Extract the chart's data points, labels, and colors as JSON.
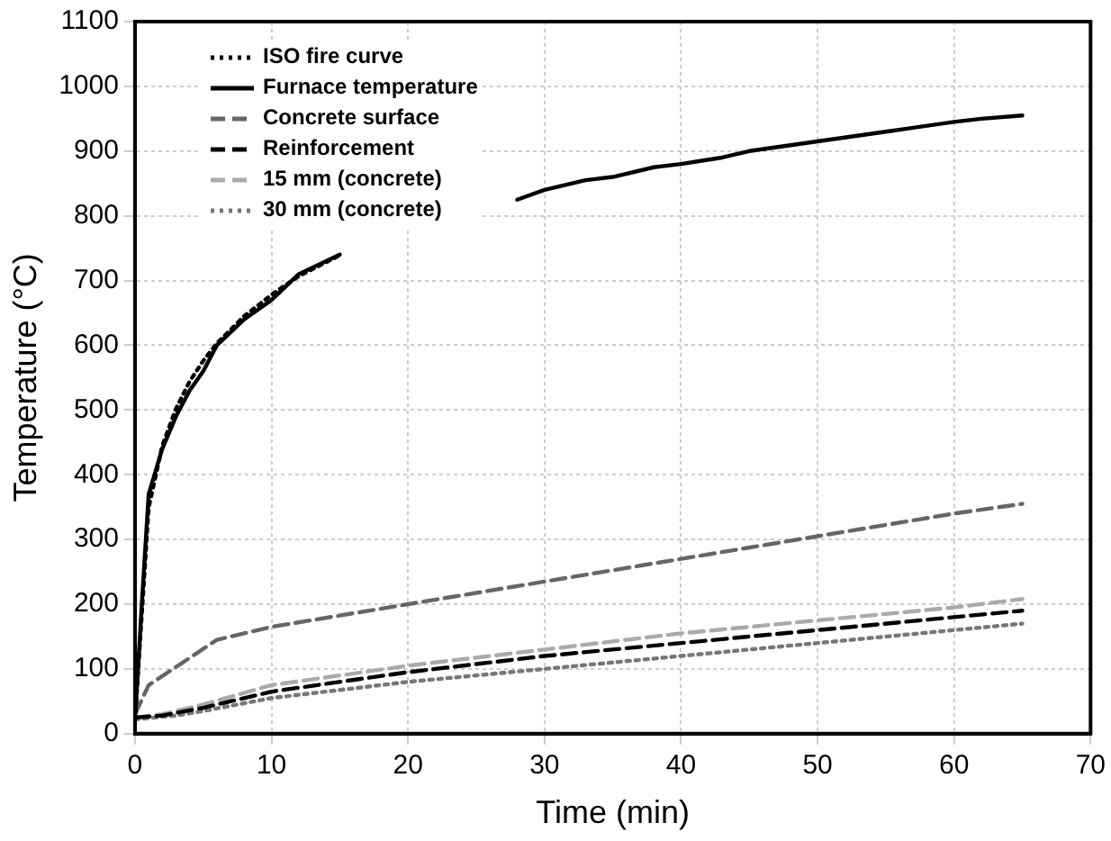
{
  "chart_data": {
    "type": "line",
    "xlabel": "Time (min)",
    "ylabel": "Temperature (°C)",
    "xlim": [
      0,
      70
    ],
    "xticks": [
      0,
      10,
      20,
      30,
      40,
      50,
      60,
      70
    ],
    "ylim": [
      0,
      1100
    ],
    "yticks": [
      0,
      100,
      200,
      300,
      400,
      500,
      600,
      700,
      800,
      900,
      1000,
      1100
    ],
    "grid": true,
    "legend": "top left",
    "marker": "none",
    "series": [
      {
        "name": "ISO fire curve",
        "color": "#000000",
        "line_style": "dotted",
        "x": [
          0,
          1,
          2,
          3,
          4,
          5,
          6,
          8,
          10,
          12,
          15
        ],
        "values": [
          20,
          349,
          445,
          502,
          544,
          576,
          603,
          645,
          678,
          707,
          739
        ]
      },
      {
        "name": "Furnace temperature",
        "color": "#000000",
        "line_style": "solid",
        "x": [
          0,
          0.5,
          1,
          2,
          3,
          4,
          5,
          6,
          8,
          10,
          12,
          15,
          20,
          28,
          30,
          33,
          35,
          38,
          40,
          43,
          45,
          50,
          55,
          60,
          62,
          65
        ],
        "values": [
          20,
          200,
          370,
          440,
          490,
          530,
          560,
          600,
          640,
          670,
          710,
          740,
          null,
          825,
          840,
          855,
          860,
          875,
          880,
          890,
          900,
          915,
          930,
          945,
          950,
          955
        ]
      },
      {
        "name": "Concrete surface",
        "color": "#666666",
        "line_style": "dashed",
        "x": [
          0,
          1,
          6,
          10,
          20,
          30,
          40,
          50,
          60,
          65
        ],
        "values": [
          30,
          75,
          145,
          165,
          200,
          235,
          270,
          305,
          340,
          355
        ]
      },
      {
        "name": "Reinforcement",
        "color": "#000000",
        "line_style": "dashed",
        "x": [
          0,
          2,
          5,
          10,
          20,
          30,
          40,
          50,
          60,
          65
        ],
        "values": [
          25,
          28,
          40,
          65,
          95,
          120,
          140,
          160,
          180,
          190
        ]
      },
      {
        "name": "15 mm (concrete)",
        "color": "#aaaaaa",
        "line_style": "dashed",
        "x": [
          0,
          2,
          5,
          10,
          20,
          30,
          40,
          50,
          60,
          65
        ],
        "values": [
          25,
          30,
          45,
          75,
          105,
          130,
          155,
          175,
          195,
          208
        ]
      },
      {
        "name": "30 mm (concrete)",
        "color": "#777777",
        "line_style": "dotted",
        "x": [
          0,
          3,
          5,
          10,
          20,
          30,
          40,
          50,
          60,
          65
        ],
        "values": [
          22,
          28,
          35,
          55,
          80,
          100,
          120,
          140,
          160,
          170
        ]
      }
    ]
  }
}
